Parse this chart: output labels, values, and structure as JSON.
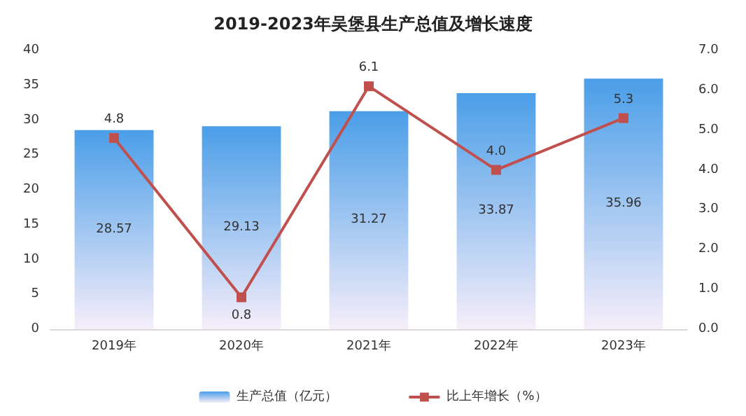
{
  "chart_data": {
    "type": "bar",
    "title": "2019-2023年吴堡县生产总值及增长速度",
    "categories": [
      "2019年",
      "2020年",
      "2021年",
      "2022年",
      "2023年"
    ],
    "series": [
      {
        "name": "生产总值（亿元）",
        "color": "#4a9ee8",
        "values": [
          28.57,
          29.13,
          31.27,
          33.87,
          35.96
        ],
        "data_labels": true
      },
      {
        "name": "比上年增长（%）",
        "type": "line",
        "axis": "y2",
        "color": "#c0504d",
        "values": [
          4.8,
          0.8,
          6.1,
          4.0,
          5.3
        ],
        "value_labels": [
          "4.8",
          "0.8",
          "6.1",
          "4.0",
          "5.3"
        ],
        "marker": "square"
      }
    ],
    "ylim": [
      0,
      40
    ],
    "yticks": [
      0,
      5,
      10,
      15,
      20,
      25,
      30,
      35,
      40
    ],
    "y2lim": [
      0,
      7
    ],
    "y2ticks": [
      {
        "value": 0,
        "label": "0.0"
      },
      {
        "value": 1,
        "label": "1.0"
      },
      {
        "value": 2,
        "label": "2.0"
      },
      {
        "value": 3,
        "label": "3.0"
      },
      {
        "value": 4,
        "label": "4.0"
      },
      {
        "value": 5,
        "label": "5.0"
      },
      {
        "value": 6,
        "label": "6.0"
      },
      {
        "value": 7,
        "label": "7.0"
      }
    ],
    "grid": false,
    "legend": "bottom"
  }
}
